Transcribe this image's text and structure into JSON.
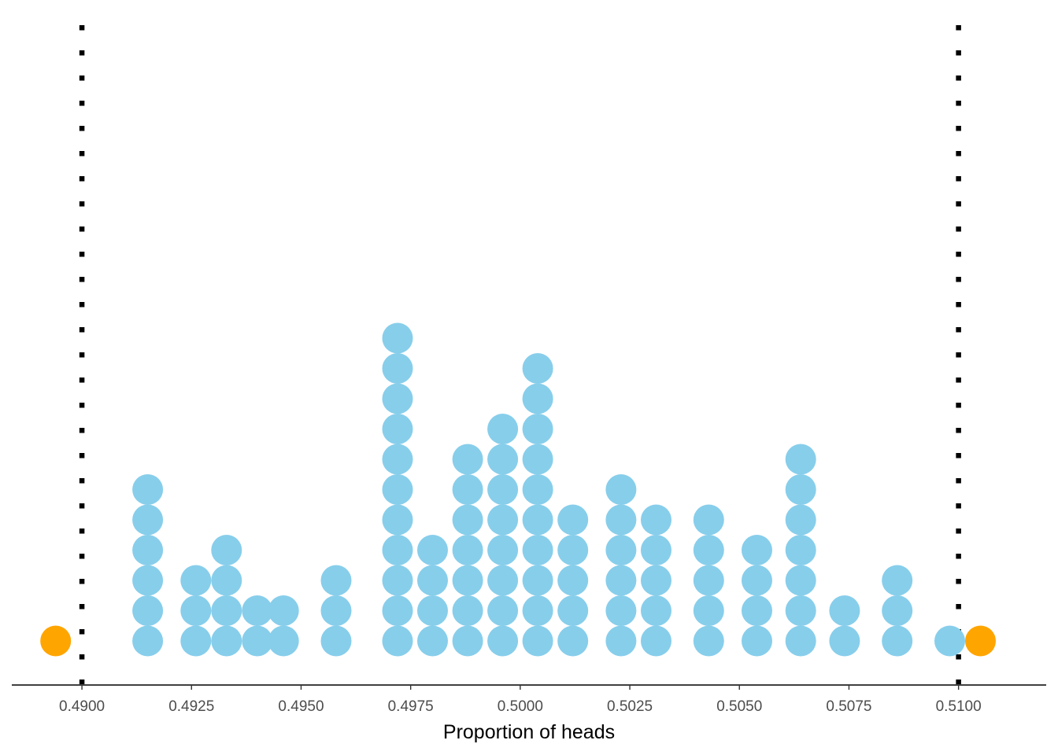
{
  "chart_data": {
    "type": "scatter",
    "subtype": "dotplot",
    "xlabel": "Proportion of heads",
    "xlim": [
      0.4884,
      0.512
    ],
    "x_ticks": [
      0.49,
      0.4925,
      0.495,
      0.4975,
      0.5,
      0.5025,
      0.505,
      0.5075,
      0.51
    ],
    "x_tick_labels": [
      "0.4900",
      "0.4925",
      "0.4950",
      "0.4975",
      "0.5000",
      "0.5025",
      "0.5050",
      "0.5075",
      "0.5100"
    ],
    "reference_lines": [
      0.49,
      0.51
    ],
    "reference_line_style": "dotted",
    "grid": false,
    "colors": {
      "in_range": "#87ceeb",
      "out_of_range": "#ffa500",
      "reference_line": "#000000",
      "axis": "#000000"
    },
    "stacks": [
      {
        "x": 0.4894,
        "count": 1,
        "group": "out_of_range"
      },
      {
        "x": 0.4915,
        "count": 6,
        "group": "in_range"
      },
      {
        "x": 0.4926,
        "count": 3,
        "group": "in_range"
      },
      {
        "x": 0.4933,
        "count": 4,
        "group": "in_range"
      },
      {
        "x": 0.494,
        "count": 2,
        "group": "in_range"
      },
      {
        "x": 0.4946,
        "count": 2,
        "group": "in_range"
      },
      {
        "x": 0.4958,
        "count": 3,
        "group": "in_range"
      },
      {
        "x": 0.4972,
        "count": 11,
        "group": "in_range"
      },
      {
        "x": 0.498,
        "count": 4,
        "group": "in_range"
      },
      {
        "x": 0.4988,
        "count": 7,
        "group": "in_range"
      },
      {
        "x": 0.4996,
        "count": 8,
        "group": "in_range"
      },
      {
        "x": 0.5004,
        "count": 10,
        "group": "in_range"
      },
      {
        "x": 0.5012,
        "count": 5,
        "group": "in_range"
      },
      {
        "x": 0.5023,
        "count": 6,
        "group": "in_range"
      },
      {
        "x": 0.5031,
        "count": 5,
        "group": "in_range"
      },
      {
        "x": 0.5043,
        "count": 5,
        "group": "in_range"
      },
      {
        "x": 0.5054,
        "count": 4,
        "group": "in_range"
      },
      {
        "x": 0.5064,
        "count": 7,
        "group": "in_range"
      },
      {
        "x": 0.5074,
        "count": 2,
        "group": "in_range"
      },
      {
        "x": 0.5086,
        "count": 3,
        "group": "in_range"
      },
      {
        "x": 0.5098,
        "count": 1,
        "group": "in_range"
      },
      {
        "x": 0.5105,
        "count": 1,
        "group": "out_of_range"
      }
    ]
  }
}
